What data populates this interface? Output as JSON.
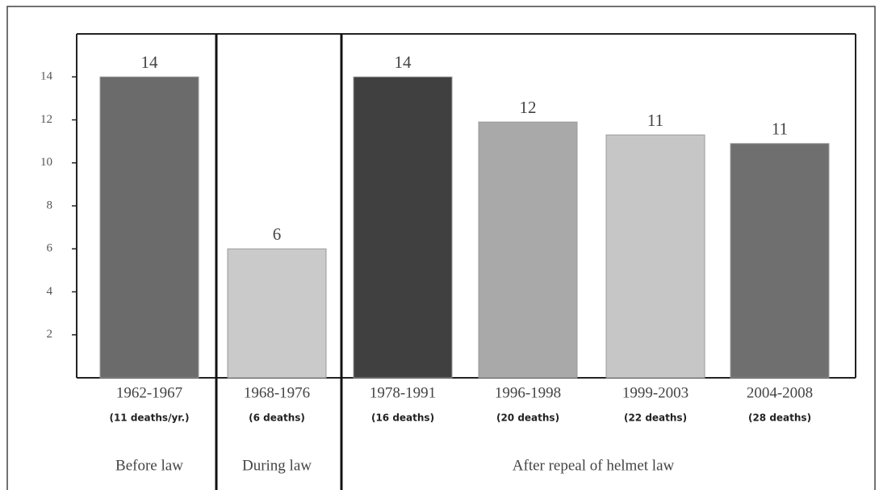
{
  "chart_data": {
    "type": "bar",
    "categories": [
      "1962-1967",
      "1968-1976",
      "1978-1991",
      "1996-1998",
      "1999-2003",
      "2004-2008"
    ],
    "sublabels": [
      "(11 deaths/yr.)",
      "(6 deaths)",
      "(16 deaths)",
      "(20 deaths)",
      "(22 deaths)",
      "(28 deaths)"
    ],
    "values": [
      14,
      6,
      14,
      11.9,
      11.3,
      10.9
    ],
    "value_labels": [
      "14",
      "6",
      "14",
      "12",
      "11",
      "11"
    ],
    "colors": [
      "#6b6b6b",
      "#cacaca",
      "#404040",
      "#a9a9a9",
      "#c6c6c6",
      "#6f6f6f"
    ],
    "groups": [
      "Before law",
      "During law",
      "After repeal of helmet law"
    ],
    "ylim": [
      0,
      16
    ],
    "yticks": [
      2,
      4,
      6,
      8,
      10,
      12,
      14
    ],
    "grid": false
  }
}
